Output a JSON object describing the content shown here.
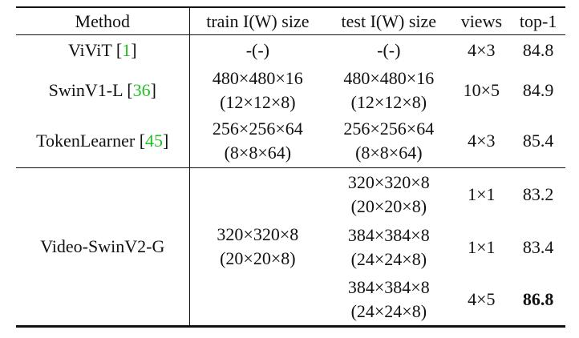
{
  "header": [
    "Method",
    "train I(W) size",
    "test I(W) size",
    "views",
    "top-1"
  ],
  "rows": [
    {
      "method": [
        "ViViT [",
        "1",
        "]"
      ],
      "train": [
        "-(-)"
      ],
      "test": [
        "-(-)"
      ],
      "views": "4×3",
      "top1": 84.8
    },
    {
      "method": [
        "SwinV1-L [",
        "36",
        "]"
      ],
      "train": [
        "480×480×16",
        "(12×12×8)"
      ],
      "test": [
        "480×480×16",
        "(12×12×8)"
      ],
      "views": "10×5",
      "top1": 84.9
    },
    {
      "method": [
        "TokenLearner [",
        "45",
        "]"
      ],
      "train": [
        "256×256×64",
        "(8×8×64)"
      ],
      "test": [
        "256×256×64",
        "(8×8×64)"
      ],
      "views": "4×3",
      "top1": 85.4
    },
    {
      "method": [
        "Video-SwinV2-G"
      ],
      "train": [
        "320×320×8",
        "(20×20×8)"
      ],
      "runs": [
        {
          "test": [
            "320×320×8",
            "(20×20×8)"
          ],
          "views": "1×1",
          "top1": 83.2
        },
        {
          "test": [
            "384×384×8",
            "(24×24×8)"
          ],
          "views": "1×1",
          "top1": 83.4
        },
        {
          "test": [
            "384×384×8",
            "(24×24×8)"
          ],
          "views": "4×5",
          "top1": 86.8,
          "bold": true
        }
      ]
    }
  ]
}
